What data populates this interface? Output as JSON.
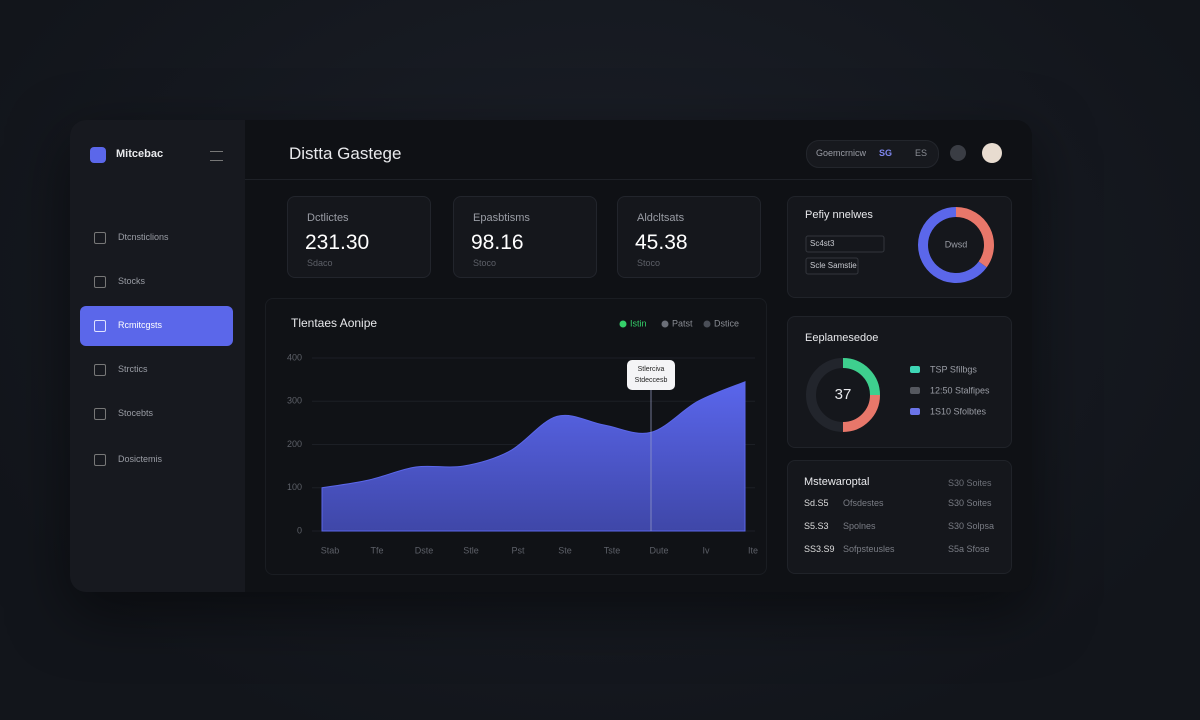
{
  "sidebar": {
    "brand": "Mitcebac",
    "nav": [
      "Dtcnsticlions",
      "Stocks",
      "Rcmitcgsts",
      "Strctics",
      "Stocebts",
      "Dosictemis"
    ],
    "active": 2
  },
  "header": {
    "title": "Distta Gastege",
    "search": "Goemcrnicw",
    "badge": "SG",
    "code": "ES"
  },
  "stats": [
    {
      "label": "Dctlictes",
      "value": "231.30",
      "sub": "Sdaco"
    },
    {
      "label": "Epasbtisms",
      "value": "98.16",
      "sub": "Stoco"
    },
    {
      "label": "Aldcltsats",
      "value": "45.38",
      "sub": "Stoco"
    }
  ],
  "list": {
    "title": "Mstewaroptal",
    "rows": [
      [
        "Sd.S5",
        "Ofsdestes",
        "S30 Soites"
      ],
      [
        "S5.S3",
        "Spolnes",
        "S30 Solpsa"
      ],
      [
        "SS3.S9",
        "Sofpsteusles",
        "S5a Sfose"
      ]
    ]
  },
  "chart_data": [
    {
      "type": "area",
      "title": "Tlentaes Aonipe",
      "categories": [
        "Stab",
        "Tfe",
        "Dste",
        "Stle",
        "Pst",
        "Ste",
        "Tste",
        "Dute",
        "Iv",
        "Ite"
      ],
      "series": [
        {
          "name": "Istin",
          "color": "#5b67ea",
          "values": [
            100,
            118,
            148,
            150,
            185,
            265,
            245,
            228,
            300,
            345
          ]
        }
      ],
      "legend": [
        {
          "name": "Istin",
          "color": "#35d06a"
        },
        {
          "name": "Patst",
          "color": "#6b6f78"
        },
        {
          "name": "Dstice",
          "color": "#4a4e57"
        }
      ],
      "ylim": [
        0,
        400
      ],
      "yticks": [
        0,
        100,
        200,
        300,
        400
      ],
      "grid": true,
      "tooltip": {
        "index": 7,
        "lines": [
          "Stlerciva",
          "Stdeccesb"
        ]
      }
    },
    {
      "type": "pie",
      "title": "Pefiy nnelwes",
      "center": "Dwsd",
      "values": [
        35,
        65
      ],
      "colors": [
        "#e8776a",
        "#5b67ea"
      ],
      "annotations": [
        "Sc4st3",
        "Scle Samstie"
      ]
    },
    {
      "type": "pie",
      "title": "Eeplamesedoe",
      "center": "37",
      "values": [
        25,
        25,
        50
      ],
      "colors": [
        "#3ecf8e",
        "#e8776a",
        "#22252c"
      ],
      "legend": [
        {
          "name": "TSP Sfilbgs",
          "color": "#3ed6b5"
        },
        {
          "name": "12:50 Stalfipes",
          "color": "#55585f"
        },
        {
          "name": "1S10 Sfolbtes",
          "color": "#6b74e8"
        }
      ]
    }
  ]
}
